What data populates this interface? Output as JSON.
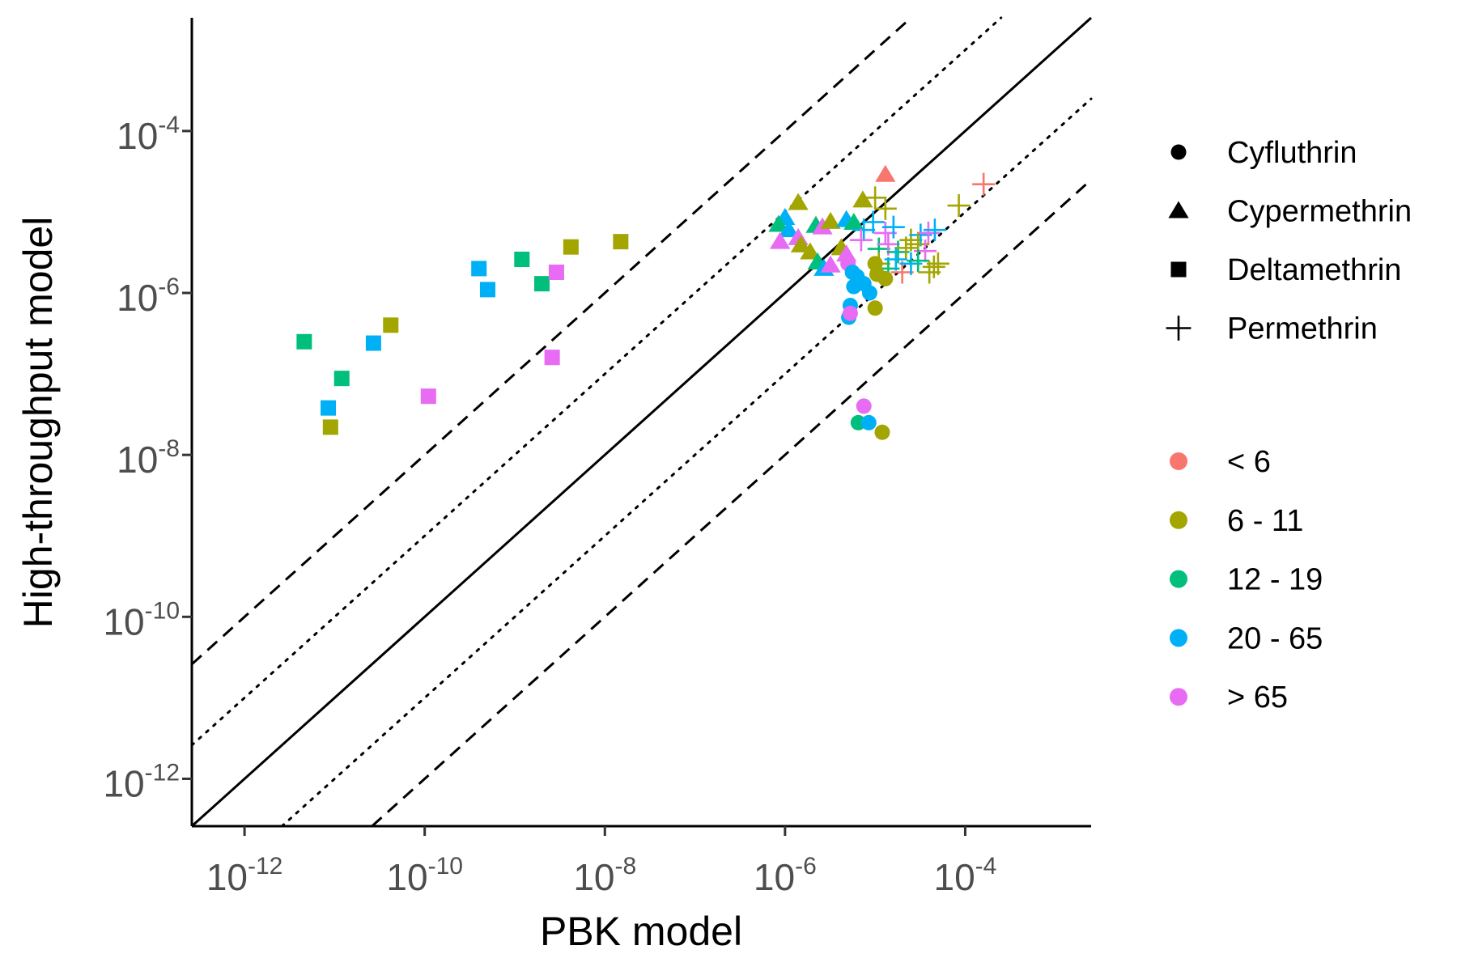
{
  "chart_data": {
    "type": "scatter",
    "title": "",
    "xlabel": "PBK model",
    "ylabel": "High-throughput model",
    "xscale": "log10",
    "yscale": "log10",
    "xlim": [
      2.6e-13,
      0.0025
    ],
    "ylim": [
      2.6e-13,
      0.0025
    ],
    "xticks": [
      {
        "base": "10",
        "exp": "-12",
        "value": 1e-12
      },
      {
        "base": "10",
        "exp": "-10",
        "value": 1e-10
      },
      {
        "base": "10",
        "exp": "-8",
        "value": 1e-08
      },
      {
        "base": "10",
        "exp": "-6",
        "value": 1e-06
      },
      {
        "base": "10",
        "exp": "-4",
        "value": 0.0001
      }
    ],
    "yticks": [
      {
        "base": "10",
        "exp": "-12",
        "value": 1e-12
      },
      {
        "base": "10",
        "exp": "-10",
        "value": 1e-10
      },
      {
        "base": "10",
        "exp": "-8",
        "value": 1e-08
      },
      {
        "base": "10",
        "exp": "-6",
        "value": 1e-06
      },
      {
        "base": "10",
        "exp": "-4",
        "value": 0.0001
      }
    ],
    "grid": false,
    "legend_position": "right",
    "reference_lines": [
      {
        "factor": 1,
        "style": "solid"
      },
      {
        "factor": 10,
        "style": "dotted"
      },
      {
        "factor": 0.1,
        "style": "dotted"
      },
      {
        "factor": 100,
        "style": "dashed"
      },
      {
        "factor": 0.01,
        "style": "dashed"
      }
    ],
    "shape_legend": [
      {
        "key": "circle",
        "label": "Cyfluthrin"
      },
      {
        "key": "triangle",
        "label": "Cypermethrin"
      },
      {
        "key": "square",
        "label": "Deltamethrin"
      },
      {
        "key": "plus",
        "label": "Permethrin"
      }
    ],
    "color_legend": [
      {
        "key": "lt6",
        "label": "< 6",
        "color": "#F8766D"
      },
      {
        "key": "6-11",
        "label": "6 - 11",
        "color": "#A3A500"
      },
      {
        "key": "12-19",
        "label": "12 - 19",
        "color": "#00BF7D"
      },
      {
        "key": "20-65",
        "label": "20 - 65",
        "color": "#00B0F6"
      },
      {
        "key": "gt65",
        "label": "> 65",
        "color": "#E76BF3"
      }
    ],
    "points": [
      {
        "x": 4.6e-12,
        "y": 2.5e-07,
        "shape": "square",
        "group": "12-19"
      },
      {
        "x": 8.5e-12,
        "y": 3.8e-08,
        "shape": "square",
        "group": "20-65"
      },
      {
        "x": 9e-12,
        "y": 2.2e-08,
        "shape": "square",
        "group": "6-11"
      },
      {
        "x": 1.2e-11,
        "y": 8.8e-08,
        "shape": "square",
        "group": "12-19"
      },
      {
        "x": 2.7e-11,
        "y": 2.4e-07,
        "shape": "square",
        "group": "20-65"
      },
      {
        "x": 4.2e-11,
        "y": 4e-07,
        "shape": "square",
        "group": "6-11"
      },
      {
        "x": 1.1e-10,
        "y": 5.3e-08,
        "shape": "square",
        "group": "gt65"
      },
      {
        "x": 4e-10,
        "y": 2e-06,
        "shape": "square",
        "group": "20-65"
      },
      {
        "x": 5e-10,
        "y": 1.1e-06,
        "shape": "square",
        "group": "20-65"
      },
      {
        "x": 1.2e-09,
        "y": 2.6e-06,
        "shape": "square",
        "group": "12-19"
      },
      {
        "x": 2e-09,
        "y": 1.3e-06,
        "shape": "square",
        "group": "12-19"
      },
      {
        "x": 2.6e-09,
        "y": 1.6e-07,
        "shape": "square",
        "group": "gt65"
      },
      {
        "x": 2.9e-09,
        "y": 1.8e-06,
        "shape": "square",
        "group": "gt65"
      },
      {
        "x": 4.2e-09,
        "y": 3.7e-06,
        "shape": "square",
        "group": "6-11"
      },
      {
        "x": 1.5e-08,
        "y": 4.3e-06,
        "shape": "square",
        "group": "6-11"
      },
      {
        "x": 1.3e-05,
        "y": 2.9e-05,
        "shape": "triangle",
        "group": "lt6"
      },
      {
        "x": 1.4e-06,
        "y": 1.3e-05,
        "shape": "triangle",
        "group": "6-11"
      },
      {
        "x": 7.3e-06,
        "y": 1.4e-05,
        "shape": "triangle",
        "group": "6-11"
      },
      {
        "x": 1e-06,
        "y": 8.5e-06,
        "shape": "triangle",
        "group": "20-65"
      },
      {
        "x": 8.5e-07,
        "y": 7e-06,
        "shape": "triangle",
        "group": "12-19"
      },
      {
        "x": 1.1e-06,
        "y": 6e-06,
        "shape": "triangle",
        "group": "20-65"
      },
      {
        "x": 2.2e-06,
        "y": 6.8e-06,
        "shape": "triangle",
        "group": "12-19"
      },
      {
        "x": 2.6e-06,
        "y": 6.5e-06,
        "shape": "triangle",
        "group": "gt65"
      },
      {
        "x": 3.2e-06,
        "y": 7.6e-06,
        "shape": "triangle",
        "group": "6-11"
      },
      {
        "x": 4.8e-06,
        "y": 8e-06,
        "shape": "triangle",
        "group": "20-65"
      },
      {
        "x": 5.8e-06,
        "y": 7.4e-06,
        "shape": "triangle",
        "group": "12-19"
      },
      {
        "x": 8.8e-07,
        "y": 4.3e-06,
        "shape": "triangle",
        "group": "gt65"
      },
      {
        "x": 1.4e-06,
        "y": 4.8e-06,
        "shape": "triangle",
        "group": "gt65"
      },
      {
        "x": 1.5e-06,
        "y": 3.9e-06,
        "shape": "triangle",
        "group": "6-11"
      },
      {
        "x": 1.9e-06,
        "y": 3.2e-06,
        "shape": "triangle",
        "group": "6-11"
      },
      {
        "x": 2.3e-06,
        "y": 2.4e-06,
        "shape": "triangle",
        "group": "12-19"
      },
      {
        "x": 2.7e-06,
        "y": 2e-06,
        "shape": "triangle",
        "group": "20-65"
      },
      {
        "x": 3.2e-06,
        "y": 2.2e-06,
        "shape": "triangle",
        "group": "gt65"
      },
      {
        "x": 4.2e-06,
        "y": 3.6e-06,
        "shape": "triangle",
        "group": "6-11"
      },
      {
        "x": 4.8e-06,
        "y": 3e-06,
        "shape": "triangle",
        "group": "gt65"
      },
      {
        "x": 0.00016,
        "y": 2.2e-05,
        "shape": "plus",
        "group": "lt6"
      },
      {
        "x": 1e-05,
        "y": 1.5e-05,
        "shape": "plus",
        "group": "6-11"
      },
      {
        "x": 1.3e-05,
        "y": 1.1e-05,
        "shape": "plus",
        "group": "6-11"
      },
      {
        "x": 8.5e-05,
        "y": 1.2e-05,
        "shape": "plus",
        "group": "6-11"
      },
      {
        "x": 7.5e-06,
        "y": 6e-06,
        "shape": "plus",
        "group": "20-65"
      },
      {
        "x": 9.5e-06,
        "y": 7.5e-06,
        "shape": "plus",
        "group": "20-65"
      },
      {
        "x": 1.3e-05,
        "y": 5.5e-06,
        "shape": "plus",
        "group": "gt65"
      },
      {
        "x": 1.6e-05,
        "y": 6.5e-06,
        "shape": "plus",
        "group": "20-65"
      },
      {
        "x": 2.5e-05,
        "y": 4.5e-06,
        "shape": "plus",
        "group": "6-11"
      },
      {
        "x": 3.2e-05,
        "y": 5.2e-06,
        "shape": "plus",
        "group": "20-65"
      },
      {
        "x": 3.9e-05,
        "y": 5.5e-06,
        "shape": "plus",
        "group": "gt65"
      },
      {
        "x": 4.6e-05,
        "y": 6e-06,
        "shape": "plus",
        "group": "20-65"
      },
      {
        "x": 7e-06,
        "y": 4.5e-06,
        "shape": "plus",
        "group": "gt65"
      },
      {
        "x": 1.1e-05,
        "y": 3.5e-06,
        "shape": "plus",
        "group": "12-19"
      },
      {
        "x": 1.4e-05,
        "y": 4e-06,
        "shape": "plus",
        "group": "gt65"
      },
      {
        "x": 1.8e-05,
        "y": 3.2e-06,
        "shape": "plus",
        "group": "12-19"
      },
      {
        "x": 2.2e-05,
        "y": 3.6e-06,
        "shape": "plus",
        "group": "6-11"
      },
      {
        "x": 3e-05,
        "y": 4e-06,
        "shape": "plus",
        "group": "6-11"
      },
      {
        "x": 3.6e-05,
        "y": 3.3e-06,
        "shape": "plus",
        "group": "gt65"
      },
      {
        "x": 1.1e-05,
        "y": 2.3e-06,
        "shape": "plus",
        "group": "6-11"
      },
      {
        "x": 1.4e-05,
        "y": 2e-06,
        "shape": "plus",
        "group": "12-19"
      },
      {
        "x": 1.7e-05,
        "y": 2.6e-06,
        "shape": "plus",
        "group": "20-65"
      },
      {
        "x": 2e-05,
        "y": 1.8e-06,
        "shape": "plus",
        "group": "lt6"
      },
      {
        "x": 2.5e-05,
        "y": 2.3e-06,
        "shape": "plus",
        "group": "20-65"
      },
      {
        "x": 3e-05,
        "y": 2.5e-06,
        "shape": "plus",
        "group": "12-19"
      },
      {
        "x": 4.5e-05,
        "y": 2.1e-06,
        "shape": "plus",
        "group": "6-11"
      },
      {
        "x": 5e-05,
        "y": 2.3e-06,
        "shape": "plus",
        "group": "6-11"
      },
      {
        "x": 4e-05,
        "y": 1.8e-06,
        "shape": "plus",
        "group": "6-11"
      },
      {
        "x": 5e-06,
        "y": 2.3e-06,
        "shape": "circle",
        "group": "gt65"
      },
      {
        "x": 5.6e-06,
        "y": 1.8e-06,
        "shape": "circle",
        "group": "20-65"
      },
      {
        "x": 6.3e-06,
        "y": 1.6e-06,
        "shape": "circle",
        "group": "20-65"
      },
      {
        "x": 5.8e-06,
        "y": 1.2e-06,
        "shape": "circle",
        "group": "20-65"
      },
      {
        "x": 7.5e-06,
        "y": 1.3e-06,
        "shape": "circle",
        "group": "20-65"
      },
      {
        "x": 1e-05,
        "y": 2.3e-06,
        "shape": "circle",
        "group": "6-11"
      },
      {
        "x": 1.05e-05,
        "y": 1.7e-06,
        "shape": "circle",
        "group": "6-11"
      },
      {
        "x": 1.3e-05,
        "y": 1.5e-06,
        "shape": "circle",
        "group": "6-11"
      },
      {
        "x": 1e-05,
        "y": 6.5e-07,
        "shape": "circle",
        "group": "6-11"
      },
      {
        "x": 8.7e-06,
        "y": 1e-06,
        "shape": "circle",
        "group": "20-65"
      },
      {
        "x": 5.3e-06,
        "y": 7e-07,
        "shape": "circle",
        "group": "20-65"
      },
      {
        "x": 5.1e-06,
        "y": 5e-07,
        "shape": "circle",
        "group": "20-65"
      },
      {
        "x": 5.3e-06,
        "y": 5.6e-07,
        "shape": "circle",
        "group": "gt65"
      },
      {
        "x": 7.5e-06,
        "y": 4e-08,
        "shape": "circle",
        "group": "gt65"
      },
      {
        "x": 6.5e-06,
        "y": 2.5e-08,
        "shape": "circle",
        "group": "12-19"
      },
      {
        "x": 8.5e-06,
        "y": 2.5e-08,
        "shape": "circle",
        "group": "20-65"
      },
      {
        "x": 1.2e-05,
        "y": 1.9e-08,
        "shape": "circle",
        "group": "6-11"
      }
    ]
  }
}
